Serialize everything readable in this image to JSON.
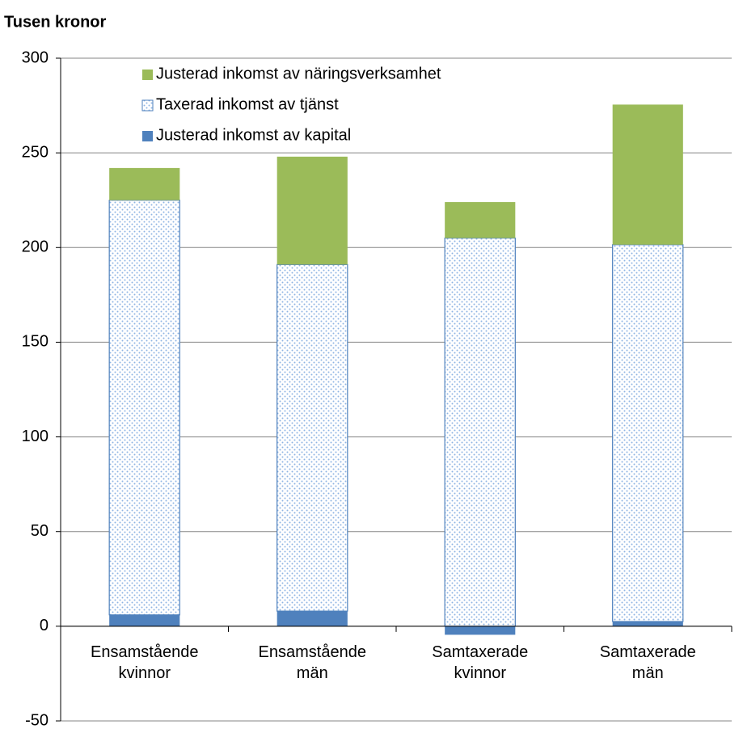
{
  "chart_data": {
    "type": "stacked-bar",
    "title": "Tusen kronor",
    "categories": [
      "Ensamstående kvinnor",
      "Ensamstående män",
      "Samtaxerade kvinnor",
      "Samtaxerade män"
    ],
    "series": [
      {
        "name": "Justerad inkomst av kapital",
        "color": "#4f81bd",
        "values": [
          6,
          8,
          -4.5,
          2.5
        ]
      },
      {
        "name": "Taxerad inkomst av tjänst",
        "color": "#4f81bd",
        "pattern": "dots",
        "values": [
          219,
          183,
          205,
          199
        ]
      },
      {
        "name": "Justerad inkomst av näringsverksamhet",
        "color": "#9bbb59",
        "values": [
          17,
          57,
          19,
          74
        ]
      }
    ],
    "ylim": [
      -50,
      300
    ],
    "yticks": [
      -50,
      0,
      50,
      100,
      150,
      200,
      250,
      300
    ],
    "grid": true,
    "legend": "upper-left"
  }
}
